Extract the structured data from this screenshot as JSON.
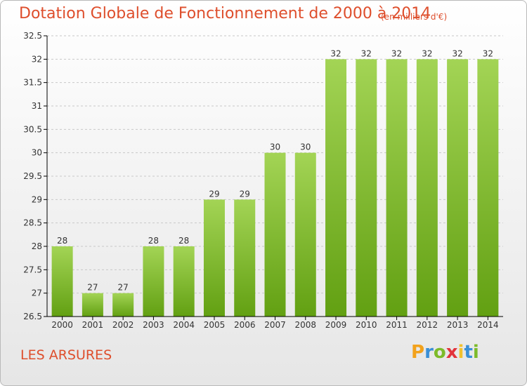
{
  "header": {
    "title": "Dotation Globale de Fonctionnement de 2000 à 2014",
    "subtitle": "(en milliers d'€)"
  },
  "commune": "LES ARSURES",
  "logo": {
    "text": "Proxiti",
    "letters": [
      "P",
      "r",
      "o",
      "x",
      "i",
      "t",
      "i"
    ],
    "colors": [
      "#f2a21c",
      "#3a8fd6",
      "#7dbb2a",
      "#e2333b",
      "#f2c12e",
      "#3a8fd6",
      "#7dbb2a"
    ]
  },
  "colors": {
    "title": "#de4e2c",
    "bar_light": "#a3d455",
    "bar_dark": "#62a012",
    "grid": "#c8c8c8",
    "axis": "#000000"
  },
  "chart_data": {
    "type": "bar",
    "categories": [
      "2000",
      "2001",
      "2002",
      "2003",
      "2004",
      "2005",
      "2006",
      "2007",
      "2008",
      "2009",
      "2010",
      "2011",
      "2012",
      "2013",
      "2014"
    ],
    "values": [
      28,
      27,
      27,
      28,
      28,
      29,
      29,
      30,
      30,
      32,
      32,
      32,
      32,
      32,
      32
    ],
    "data_labels": [
      "28",
      "27",
      "27",
      "28",
      "28",
      "29",
      "29",
      "30",
      "30",
      "32",
      "32",
      "32",
      "32",
      "32",
      "32"
    ],
    "title": "Dotation Globale de Fonctionnement de 2000 à 2014",
    "subtitle": "(en milliers d'€)",
    "xlabel": "",
    "ylabel": "",
    "ylim": [
      26.5,
      32.5
    ],
    "yticks": [
      26.5,
      27,
      27.5,
      28,
      28.5,
      29,
      29.5,
      30,
      30.5,
      31,
      31.5,
      32,
      32.5
    ],
    "ytick_labels": [
      "26.5",
      "27",
      "27.5",
      "28",
      "28.5",
      "29",
      "29.5",
      "30",
      "30.5",
      "31",
      "31.5",
      "32",
      "32.5"
    ],
    "grid": "horizontal dashed",
    "legend": "none"
  }
}
